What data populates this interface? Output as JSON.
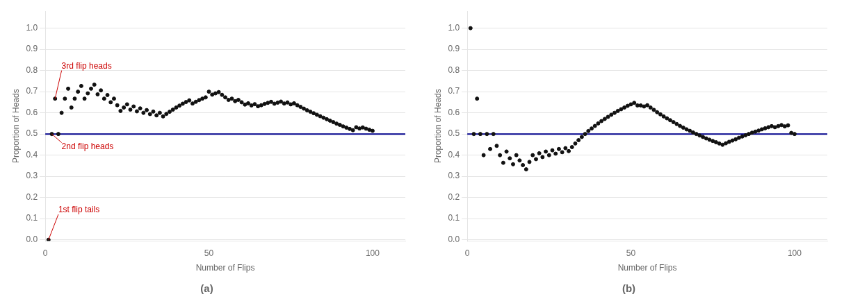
{
  "chart_data": [
    {
      "type": "scatter",
      "title": "(a)",
      "xlabel": "Number of Flips",
      "ylabel": "Proportion of Heads",
      "xlim": [
        0,
        110
      ],
      "ylim": [
        -0.005,
        1.08
      ],
      "xticks": [
        0,
        50,
        100
      ],
      "yticks": [
        {
          "value": 0.0,
          "label": "0.0"
        },
        0.1,
        0.2,
        0.3,
        0.4,
        0.5,
        0.6,
        0.7,
        0.8,
        0.9,
        {
          "value": 1.0,
          "label": "1.0"
        }
      ],
      "grid": "y",
      "color": "#111111",
      "x": [
        1,
        2,
        3,
        4,
        5,
        6,
        7,
        8,
        9,
        10,
        11,
        12,
        13,
        14,
        15,
        16,
        17,
        18,
        19,
        20,
        21,
        22,
        23,
        24,
        25,
        26,
        27,
        28,
        29,
        30,
        31,
        32,
        33,
        34,
        35,
        36,
        37,
        38,
        39,
        40,
        41,
        42,
        43,
        44,
        45,
        46,
        47,
        48,
        49,
        50,
        51,
        52,
        53,
        54,
        55,
        56,
        57,
        58,
        59,
        60,
        61,
        62,
        63,
        64,
        65,
        66,
        67,
        68,
        69,
        70,
        71,
        72,
        73,
        74,
        75,
        76,
        77,
        78,
        79,
        80,
        81,
        82,
        83,
        84,
        85,
        86,
        87,
        88,
        89,
        90,
        91,
        92,
        93,
        94,
        95,
        96,
        97,
        98,
        99,
        100
      ],
      "values": [
        0.0,
        0.5,
        0.667,
        0.5,
        0.6,
        0.667,
        0.714,
        0.625,
        0.667,
        0.7,
        0.727,
        0.667,
        0.692,
        0.714,
        0.733,
        0.6875,
        0.706,
        0.667,
        0.684,
        0.65,
        0.667,
        0.636,
        0.609,
        0.625,
        0.64,
        0.615,
        0.63,
        0.607,
        0.621,
        0.6,
        0.613,
        0.594,
        0.606,
        0.588,
        0.6,
        0.583,
        0.595,
        0.605,
        0.615,
        0.625,
        0.634,
        0.643,
        0.651,
        0.659,
        0.644,
        0.652,
        0.66,
        0.667,
        0.673,
        0.7,
        0.686,
        0.692,
        0.698,
        0.685,
        0.673,
        0.661,
        0.667,
        0.655,
        0.661,
        0.65,
        0.639,
        0.645,
        0.635,
        0.641,
        0.631,
        0.636,
        0.642,
        0.647,
        0.652,
        0.643,
        0.648,
        0.653,
        0.644,
        0.649,
        0.64,
        0.645,
        0.636,
        0.628,
        0.62,
        0.612,
        0.605,
        0.598,
        0.591,
        0.584,
        0.577,
        0.57,
        0.563,
        0.556,
        0.549,
        0.543,
        0.536,
        0.53,
        0.524,
        0.518,
        0.532,
        0.526,
        0.531,
        0.525,
        0.52,
        0.515
      ],
      "reference_lines": [
        {
          "y": 0.5,
          "color": "#00008B"
        }
      ],
      "annotations": [
        {
          "text": "1st flip tails",
          "xy": [
            1,
            0.0
          ],
          "xytext": [
            4,
            0.12
          ],
          "color": "#cc0000"
        },
        {
          "text": "2nd flip heads",
          "xy": [
            2,
            0.5
          ],
          "xytext": [
            5,
            0.42
          ],
          "color": "#cc0000"
        },
        {
          "text": "3rd flip heads",
          "xy": [
            3,
            0.667
          ],
          "xytext": [
            5,
            0.8
          ],
          "color": "#cc0000"
        }
      ]
    },
    {
      "type": "scatter",
      "title": "(b)",
      "xlabel": "Number of Flips",
      "ylabel": "Proportion of Heads",
      "xlim": [
        0,
        110
      ],
      "ylim": [
        -0.005,
        1.08
      ],
      "xticks": [
        0,
        50,
        100
      ],
      "yticks": [
        {
          "value": 0.0,
          "label": "0.0"
        },
        0.1,
        0.2,
        0.3,
        0.4,
        0.5,
        0.6,
        0.7,
        0.8,
        0.9,
        {
          "value": 1.0,
          "label": "1.0"
        }
      ],
      "grid": "y",
      "color": "#111111",
      "x": [
        1,
        2,
        3,
        4,
        5,
        6,
        7,
        8,
        9,
        10,
        11,
        12,
        13,
        14,
        15,
        16,
        17,
        18,
        19,
        20,
        21,
        22,
        23,
        24,
        25,
        26,
        27,
        28,
        29,
        30,
        31,
        32,
        33,
        34,
        35,
        36,
        37,
        38,
        39,
        40,
        41,
        42,
        43,
        44,
        45,
        46,
        47,
        48,
        49,
        50,
        51,
        52,
        53,
        54,
        55,
        56,
        57,
        58,
        59,
        60,
        61,
        62,
        63,
        64,
        65,
        66,
        67,
        68,
        69,
        70,
        71,
        72,
        73,
        74,
        75,
        76,
        77,
        78,
        79,
        80,
        81,
        82,
        83,
        84,
        85,
        86,
        87,
        88,
        89,
        90,
        91,
        92,
        93,
        94,
        95,
        96,
        97,
        98,
        99,
        100
      ],
      "values": [
        1.0,
        0.5,
        0.667,
        0.5,
        0.4,
        0.5,
        0.429,
        0.5,
        0.444,
        0.4,
        0.364,
        0.417,
        0.385,
        0.357,
        0.4,
        0.375,
        0.353,
        0.333,
        0.368,
        0.4,
        0.381,
        0.409,
        0.391,
        0.417,
        0.4,
        0.423,
        0.407,
        0.429,
        0.414,
        0.433,
        0.419,
        0.438,
        0.455,
        0.471,
        0.486,
        0.5,
        0.514,
        0.526,
        0.538,
        0.55,
        0.561,
        0.571,
        0.581,
        0.591,
        0.6,
        0.609,
        0.617,
        0.625,
        0.633,
        0.64,
        0.647,
        0.635,
        0.635,
        0.63,
        0.636,
        0.625,
        0.614,
        0.603,
        0.593,
        0.583,
        0.574,
        0.565,
        0.556,
        0.547,
        0.538,
        0.53,
        0.522,
        0.515,
        0.507,
        0.5,
        0.493,
        0.486,
        0.479,
        0.473,
        0.467,
        0.461,
        0.455,
        0.449,
        0.456,
        0.463,
        0.469,
        0.475,
        0.482,
        0.488,
        0.494,
        0.5,
        0.506,
        0.511,
        0.516,
        0.522,
        0.527,
        0.532,
        0.537,
        0.532,
        0.537,
        0.542,
        0.536,
        0.541,
        0.505,
        0.5
      ],
      "reference_lines": [
        {
          "y": 0.5,
          "color": "#00008B"
        }
      ]
    }
  ]
}
